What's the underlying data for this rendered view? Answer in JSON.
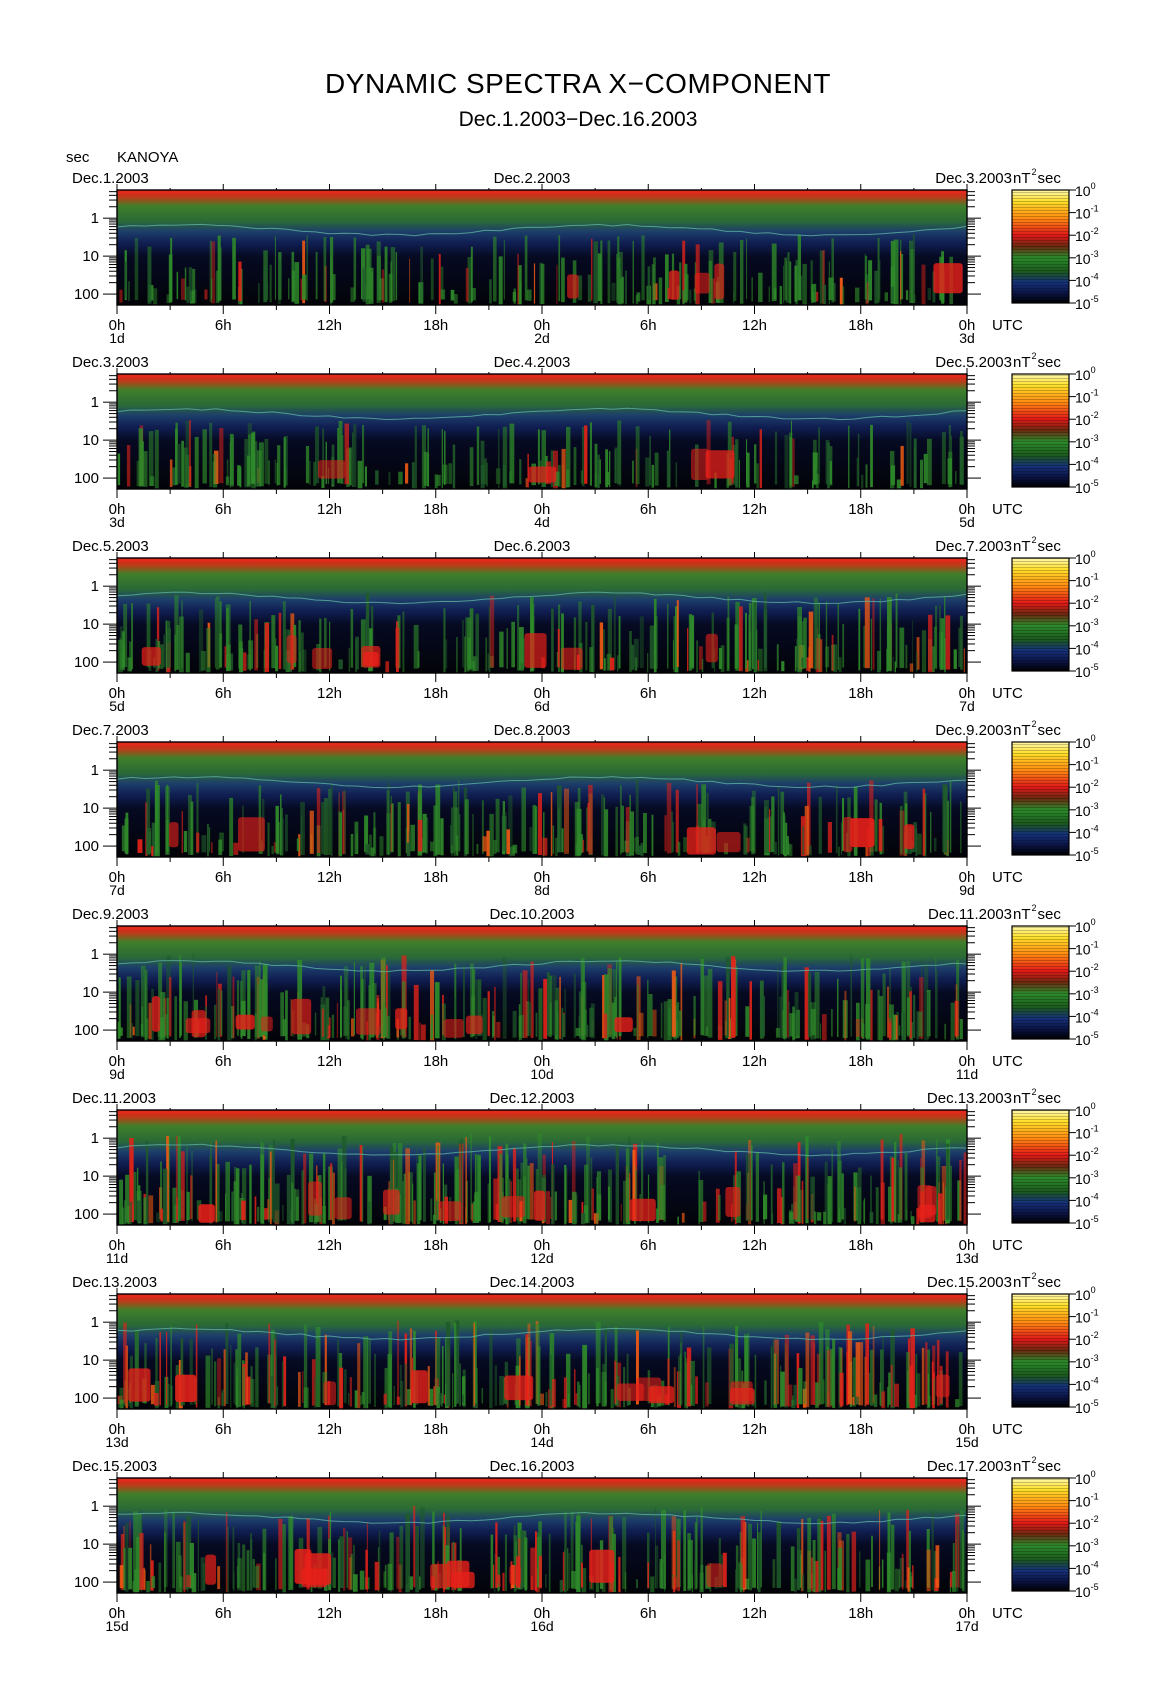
{
  "header": {
    "title": "DYNAMIC SPECTRA X−COMPONENT",
    "subtitle": "Dec.1.2003−Dec.16.2003",
    "y_unit": "sec",
    "station": "KANOYA"
  },
  "colorbar": {
    "unit_base": "nT",
    "unit_exp": "2",
    "unit_tail": "sec",
    "tick_base": "10",
    "tick_exponents": [
      "0",
      "-1",
      "-2",
      "-3",
      "-4",
      "-5"
    ],
    "colors": [
      "#ffee33",
      "#ff7711",
      "#e01818",
      "#1f7a1f",
      "#142a6e",
      "#000000"
    ]
  },
  "chart_data": {
    "type": "heatmap",
    "title": "DYNAMIC SPECTRA X−COMPONENT",
    "subtitle": "Dec.1.2003−Dec.16.2003",
    "station": "KANOYA",
    "ylabel": "sec",
    "y_scale": "log",
    "y_ticks": [
      "1",
      "10",
      "100"
    ],
    "x_ticks": [
      "0h",
      "6h",
      "12h",
      "18h",
      "0h",
      "6h",
      "12h",
      "18h",
      "0h"
    ],
    "x_right_label": "UTC",
    "colorbar_label": "nT²sec",
    "colorbar_range": [
      "10⁻⁵",
      "10⁰"
    ],
    "panels": [
      {
        "start_date": "Dec.1.2003",
        "mid_date": "Dec.2.2003",
        "end_date": "Dec.3.2003",
        "day_labels": [
          "1d",
          "2d",
          "3d"
        ]
      },
      {
        "start_date": "Dec.3.2003",
        "mid_date": "Dec.4.2003",
        "end_date": "Dec.5.2003",
        "day_labels": [
          "3d",
          "4d",
          "5d"
        ]
      },
      {
        "start_date": "Dec.5.2003",
        "mid_date": "Dec.6.2003",
        "end_date": "Dec.7.2003",
        "day_labels": [
          "5d",
          "6d",
          "7d"
        ]
      },
      {
        "start_date": "Dec.7.2003",
        "mid_date": "Dec.8.2003",
        "end_date": "Dec.9.2003",
        "day_labels": [
          "7d",
          "8d",
          "9d"
        ]
      },
      {
        "start_date": "Dec.9.2003",
        "mid_date": "Dec.10.2003",
        "end_date": "Dec.11.2003",
        "day_labels": [
          "9d",
          "10d",
          "11d"
        ]
      },
      {
        "start_date": "Dec.11.2003",
        "mid_date": "Dec.12.2003",
        "end_date": "Dec.13.2003",
        "day_labels": [
          "11d",
          "12d",
          "13d"
        ]
      },
      {
        "start_date": "Dec.13.2003",
        "mid_date": "Dec.14.2003",
        "end_date": "Dec.15.2003",
        "day_labels": [
          "13d",
          "14d",
          "15d"
        ]
      },
      {
        "start_date": "Dec.15.2003",
        "mid_date": "Dec.16.2003",
        "end_date": "Dec.17.2003",
        "day_labels": [
          "15d",
          "16d",
          "17d"
        ]
      }
    ]
  }
}
